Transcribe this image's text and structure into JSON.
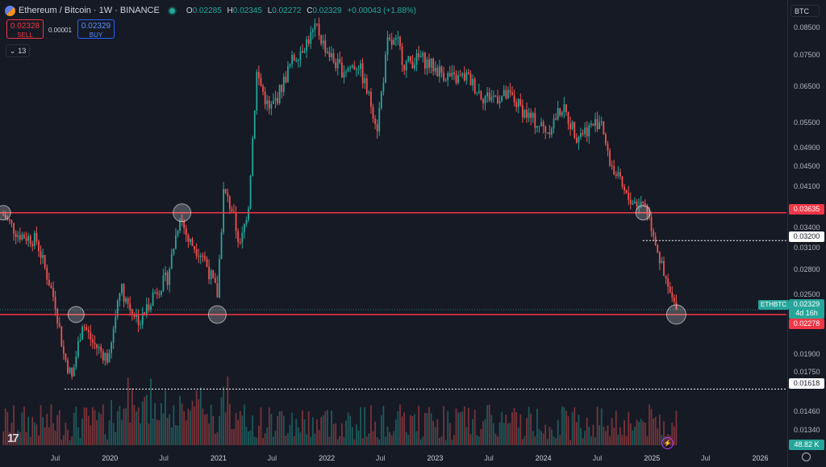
{
  "header": {
    "symbol_title": "Ethereum / Bitcoin · 1W · BINANCE",
    "ohlc": {
      "o_label": "O",
      "o": "0.02285",
      "h_label": "H",
      "h": "0.02345",
      "l_label": "L",
      "l": "0.02272",
      "c_label": "C",
      "c": "0.02329",
      "change": "+0.00043 (+1.88%)"
    }
  },
  "trade": {
    "sell_price": "0.02328",
    "sell_label": "SELL",
    "spread": "0.00001",
    "buy_price": "0.02329",
    "buy_label": "BUY"
  },
  "indicators_count": "13",
  "currency_button": "BTC",
  "price_axis": [
    "0.08500",
    "0.07500",
    "0.06500",
    "0.05500",
    "0.04900",
    "0.04500",
    "0.04100",
    "0.03400",
    "0.03100",
    "0.02800",
    "0.02500",
    "0.01900",
    "0.01750",
    "0.01460",
    "0.01340"
  ],
  "levels": {
    "upper_line": "0.03635",
    "lower_line": "0.02278",
    "dotted_upper": "0.03200",
    "dotted_lower": "0.01618",
    "current_price": "0.02329",
    "countdown": "4d 16h",
    "symbol_badge": "ETHBTC"
  },
  "volume_label": "48.82 K",
  "time_axis": [
    {
      "t": "Jul",
      "year": false
    },
    {
      "t": "2020",
      "year": true
    },
    {
      "t": "Jul",
      "year": false
    },
    {
      "t": "2021",
      "year": true
    },
    {
      "t": "Jul",
      "year": false
    },
    {
      "t": "2022",
      "year": true
    },
    {
      "t": "Jul",
      "year": false
    },
    {
      "t": "2023",
      "year": true
    },
    {
      "t": "Jul",
      "year": false
    },
    {
      "t": "2024",
      "year": true
    },
    {
      "t": "Jul",
      "year": false
    },
    {
      "t": "2025",
      "year": true
    },
    {
      "t": "Jul",
      "year": false
    },
    {
      "t": "2026",
      "year": true
    }
  ],
  "logo_text": "17",
  "colors": {
    "up": "#26a69a",
    "down": "#ef5350",
    "level_line": "#f23645",
    "bg": "#161a25"
  },
  "chart_data": {
    "type": "candlestick",
    "interval": "1W",
    "y_scale": "log",
    "ylim": [
      0.0125,
      0.089
    ],
    "anchors": [
      [
        "2019-01-07",
        0.036
      ],
      [
        "2019-02-25",
        0.033
      ],
      [
        "2019-04-29",
        0.032
      ],
      [
        "2019-07-01",
        0.024
      ],
      [
        "2019-07-29",
        0.019
      ],
      [
        "2019-08-26",
        0.017
      ],
      [
        "2019-09-30",
        0.022
      ],
      [
        "2019-11-04",
        0.02
      ],
      [
        "2019-12-30",
        0.0185
      ],
      [
        "2020-02-03",
        0.026
      ],
      [
        "2020-03-09",
        0.0235
      ],
      [
        "2020-04-13",
        0.022
      ],
      [
        "2020-05-25",
        0.025
      ],
      [
        "2020-07-13",
        0.027
      ],
      [
        "2020-08-24",
        0.036
      ],
      [
        "2020-09-21",
        0.032
      ],
      [
        "2020-11-09",
        0.03
      ],
      [
        "2020-12-28",
        0.025
      ],
      [
        "2021-01-18",
        0.04
      ],
      [
        "2021-02-15",
        0.037
      ],
      [
        "2021-03-15",
        0.031
      ],
      [
        "2021-04-12",
        0.038
      ],
      [
        "2021-05-10",
        0.069
      ],
      [
        "2021-06-21",
        0.058
      ],
      [
        "2021-07-19",
        0.062
      ],
      [
        "2021-09-06",
        0.073
      ],
      [
        "2021-11-29",
        0.085
      ],
      [
        "2021-12-20",
        0.079
      ],
      [
        "2022-01-24",
        0.073
      ],
      [
        "2022-02-21",
        0.07
      ],
      [
        "2022-04-18",
        0.072
      ],
      [
        "2022-06-06",
        0.058
      ],
      [
        "2022-06-20",
        0.054
      ],
      [
        "2022-07-25",
        0.079
      ],
      [
        "2022-08-29",
        0.079
      ],
      [
        "2022-09-19",
        0.072
      ],
      [
        "2022-11-14",
        0.074
      ],
      [
        "2023-01-09",
        0.07
      ],
      [
        "2023-03-06",
        0.067
      ],
      [
        "2023-04-17",
        0.068
      ],
      [
        "2023-06-12",
        0.062
      ],
      [
        "2023-09-11",
        0.062
      ],
      [
        "2023-11-20",
        0.056
      ],
      [
        "2024-01-15",
        0.053
      ],
      [
        "2024-03-04",
        0.059
      ],
      [
        "2024-04-22",
        0.052
      ],
      [
        "2024-06-10",
        0.054
      ],
      [
        "2024-07-15",
        0.056
      ],
      [
        "2024-08-05",
        0.047
      ],
      [
        "2024-10-07",
        0.039
      ],
      [
        "2024-11-11",
        0.038
      ],
      [
        "2024-12-09",
        0.038
      ],
      [
        "2025-01-13",
        0.032
      ],
      [
        "2025-02-10",
        0.027
      ],
      [
        "2025-03-03",
        0.025
      ],
      [
        "2025-03-24",
        0.023
      ]
    ],
    "last_close": 0.02329,
    "horizontal_lines": [
      0.03635,
      0.02278
    ],
    "dotted_levels": [
      0.032,
      0.01618
    ]
  }
}
